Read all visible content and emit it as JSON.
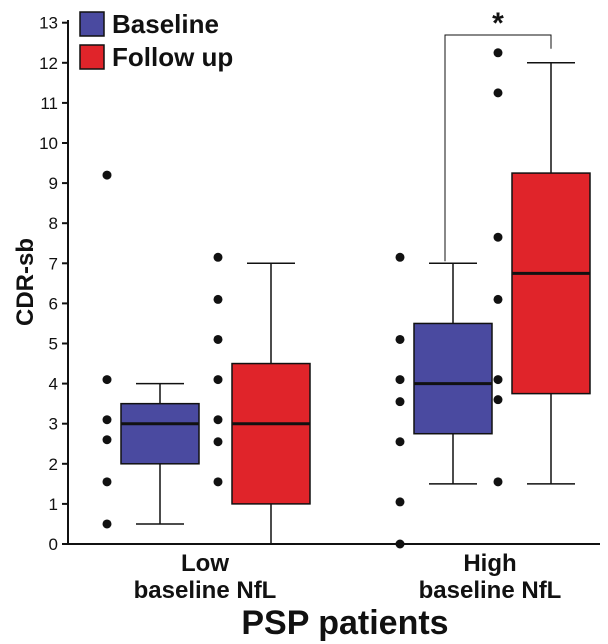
{
  "chart_data": {
    "type": "box",
    "ylabel": "CDR-sb",
    "xlabel": "PSP patients",
    "ylim": [
      0,
      13
    ],
    "yticks": [
      0,
      1,
      2,
      3,
      4,
      5,
      6,
      7,
      8,
      9,
      10,
      11,
      12,
      13
    ],
    "grid": false,
    "legend_position": "top-left",
    "groups": [
      {
        "label_line1": "Low",
        "label_line2": "baseline NfL"
      },
      {
        "label_line1": "High",
        "label_line2": "baseline NfL"
      }
    ],
    "series": [
      {
        "name": "Baseline",
        "color": "#4a4aa0",
        "boxes": [
          {
            "group": 0,
            "whisker_low": 0.5,
            "q1": 2.0,
            "median": 3.0,
            "q3": 3.5,
            "whisker_high": 4.0,
            "points": [
              9.2,
              4.1,
              3.1,
              2.6,
              1.55,
              0.5
            ]
          },
          {
            "group": 1,
            "whisker_low": 1.5,
            "q1": 2.75,
            "median": 4.0,
            "q3": 5.5,
            "whisker_high": 7.0,
            "points": [
              7.15,
              5.1,
              4.1,
              3.55,
              2.55,
              1.05,
              0.0
            ]
          }
        ]
      },
      {
        "name": "Follow up",
        "color": "#e0242a",
        "boxes": [
          {
            "group": 0,
            "whisker_low": 0.0,
            "q1": 1.0,
            "median": 3.0,
            "q3": 4.5,
            "whisker_high": 7.0,
            "points": [
              7.15,
              6.1,
              5.1,
              4.1,
              3.1,
              2.55,
              1.55
            ]
          },
          {
            "group": 1,
            "whisker_low": 1.5,
            "q1": 3.75,
            "median": 6.75,
            "q3": 9.25,
            "whisker_high": 12.0,
            "points": [
              12.25,
              11.25,
              7.65,
              6.1,
              4.1,
              3.6,
              1.55
            ]
          }
        ]
      }
    ],
    "annotations": [
      {
        "text": "*",
        "from": {
          "series": 0,
          "group": 1
        },
        "to": {
          "series": 1,
          "group": 1
        }
      }
    ]
  }
}
